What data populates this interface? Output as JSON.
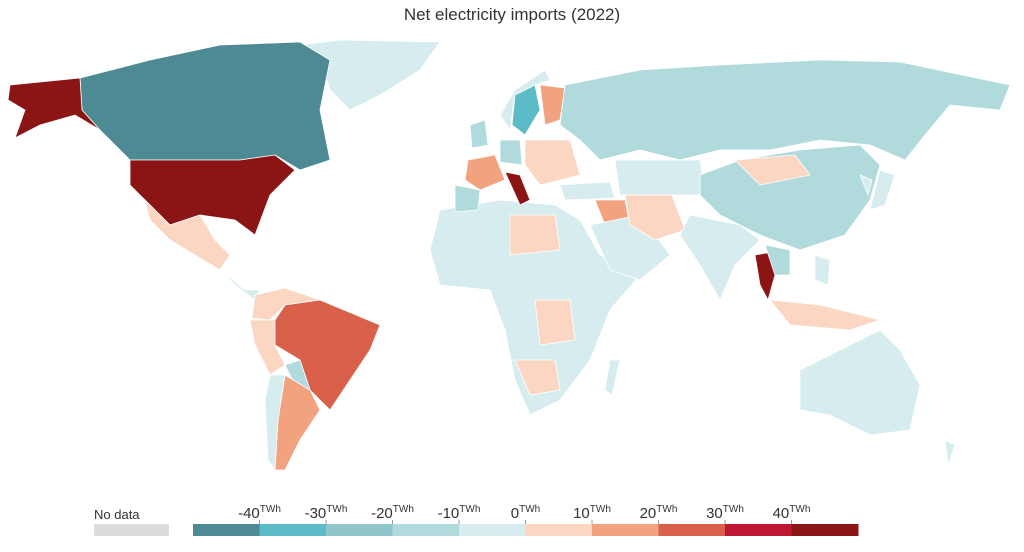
{
  "title": "Net electricity imports (2022)",
  "legend": {
    "no_data": "No data",
    "no_data_color": "#dcdcdc",
    "unit": "TWh",
    "ticks": [
      -40,
      -30,
      -20,
      -10,
      0,
      10,
      20,
      30,
      40
    ],
    "colors": [
      "#4d8a94",
      "#5bbcc8",
      "#8ec6cb",
      "#b1dadd",
      "#d7ecee",
      "#fbd6c3",
      "#f2a27f",
      "#d9614a",
      "#be1733",
      "#8b1414"
    ]
  }
}
